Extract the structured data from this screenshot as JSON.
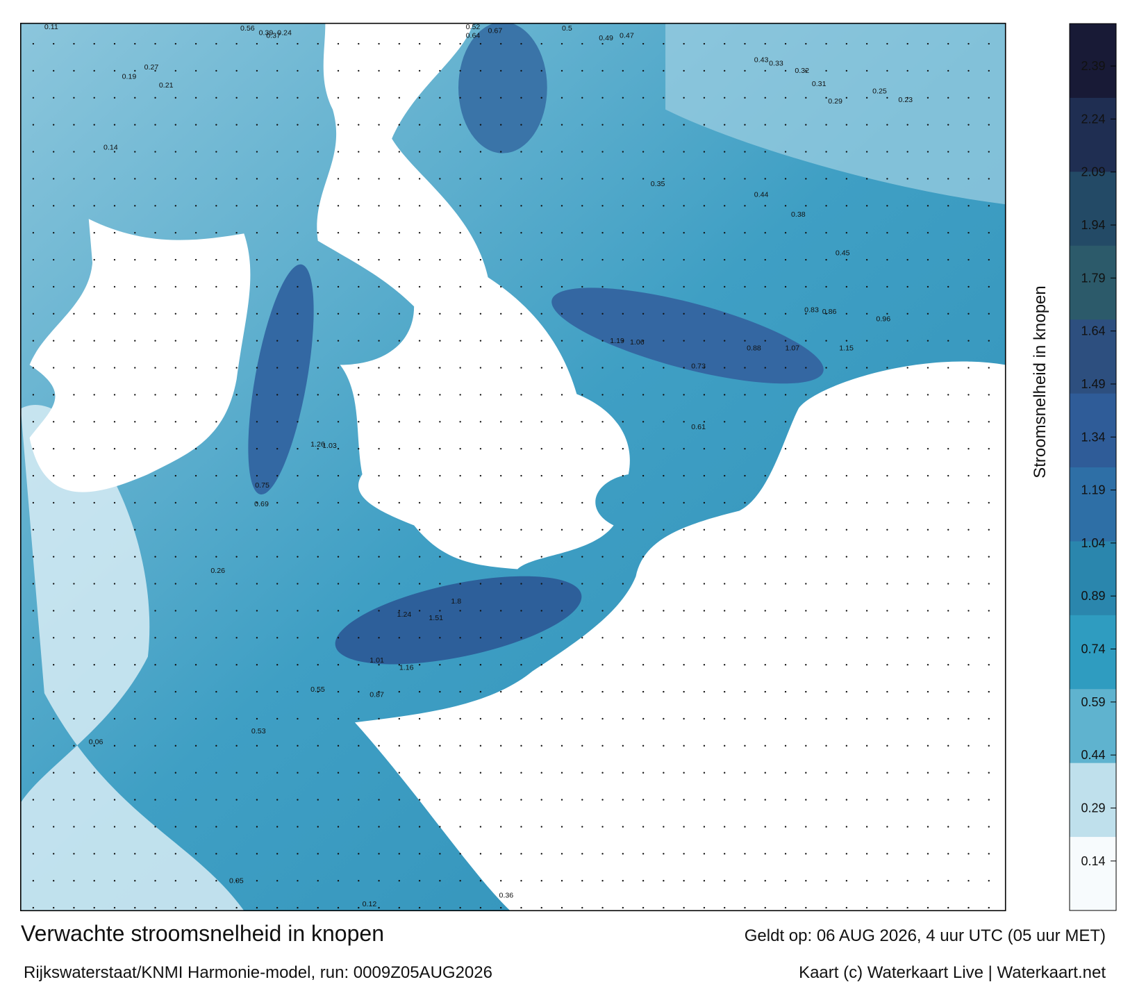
{
  "title": "Verwachte stroomsnelheid in knopen",
  "model_run": "Rijkswaterstaat/KNMI Harmonie-model, run: 0009Z05AUG2026",
  "valid_time": "Geldt op: 06 AUG 2026, 4 uur UTC (05 uur MET)",
  "credit": "Kaart (c) Waterkaart Live | Waterkaart.net",
  "colorbar": {
    "label": "Stroomsnelheid in knopen",
    "lim": [
      0,
      2.51
    ],
    "ticks": [
      0.14,
      0.29,
      0.44,
      0.59,
      0.74,
      0.89,
      1.04,
      1.19,
      1.34,
      1.49,
      1.64,
      1.79,
      1.94,
      2.09,
      2.24,
      2.39
    ],
    "colors": [
      "#f7fbfd",
      "#bfe0ec",
      "#5fb3cf",
      "#2f9cc0",
      "#2a86ad",
      "#2e6fa6",
      "#2f5c98",
      "#2d4f7f",
      "#2c5a6a",
      "#234a66",
      "#1f2e52",
      "#181a36"
    ]
  },
  "map": {
    "speed_labels": [
      0.11,
      0.56,
      0.39,
      0.37,
      0.24,
      0.52,
      0.64,
      0.67,
      0.49,
      0.47,
      0.5,
      0.27,
      0.19,
      0.21,
      0.14,
      0.43,
      0.33,
      0.32,
      0.31,
      0.29,
      0.25,
      0.23,
      0.35,
      0.38,
      0.44,
      0.45,
      0.83,
      0.86,
      0.96,
      1.07,
      1.15,
      1.19,
      1.06,
      0.88,
      0.73,
      0.61,
      1.26,
      1.03,
      0.75,
      0.69,
      1.51,
      1.8,
      1.24,
      1.01,
      1.16,
      0.87,
      0.55,
      0.53,
      0.26,
      0.06,
      0.05,
      0.12,
      0.36
    ]
  }
}
